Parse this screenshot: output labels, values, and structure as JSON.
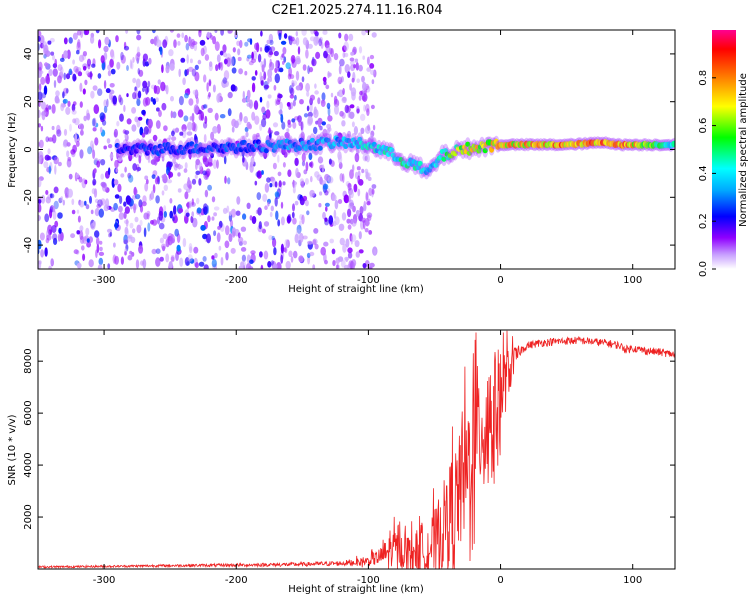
{
  "title": "C2E1.2025.274.11.16.R04",
  "chart_data": [
    {
      "type": "heatmap",
      "xlabel": "Height of straight line (km)",
      "ylabel": "Frequency (Hz)",
      "xlim": [
        -350,
        132
      ],
      "ylim": [
        -50,
        50
      ],
      "xticks": [
        -300,
        -200,
        -100,
        0,
        100
      ],
      "yticks": [
        -40,
        -20,
        0,
        20,
        40
      ],
      "colorbar": {
        "label": "Normalized spectral amplitude",
        "range": [
          0,
          1
        ],
        "ticks": [
          "0.0",
          "0.2",
          "0.4",
          "0.6",
          "0.8"
        ],
        "colormap": [
          "#ffffff",
          "#9f00ff",
          "#0000ff",
          "#00ffff",
          "#00ff00",
          "#ffff00",
          "#ff7f00",
          "#ff0000",
          "#ff0080"
        ]
      },
      "ridge": {
        "x": [
          -280,
          -200,
          -150,
          -120,
          -100,
          -90,
          -75,
          -60,
          -55,
          -45,
          -30,
          -15,
          -5,
          0,
          50,
          80,
          90,
          100,
          132
        ],
        "y": [
          0,
          1,
          2,
          3,
          2,
          0,
          -4,
          -8,
          -10,
          -3,
          0,
          1,
          2,
          2,
          2,
          3,
          2,
          2,
          2
        ],
        "amplitude": [
          0.25,
          0.3,
          0.35,
          0.4,
          0.45,
          0.45,
          0.5,
          0.45,
          0.4,
          0.5,
          0.7,
          0.75,
          0.8,
          0.8,
          0.85,
          0.9,
          0.85,
          0.8,
          0.45
        ]
      },
      "noise_region_x": [
        -350,
        -110
      ]
    },
    {
      "type": "line",
      "xlabel": "Height of straight line (km)",
      "ylabel": "SNR (10 * v/v)",
      "xlim": [
        -350,
        132
      ],
      "ylim": [
        0,
        9200
      ],
      "xticks": [
        -300,
        -200,
        -100,
        0,
        100
      ],
      "yticks": [
        2000,
        4000,
        6000,
        8000
      ],
      "color": "#ee2222",
      "series": [
        {
          "name": "SNR",
          "x": [
            -350,
            -300,
            -250,
            -200,
            -150,
            -120,
            -100,
            -90,
            -80,
            -70,
            -60,
            -50,
            -45,
            -40,
            -35,
            -30,
            -25,
            -20,
            -15,
            -10,
            -5,
            0,
            5,
            10,
            15,
            20,
            25,
            30,
            40,
            50,
            60,
            70,
            80,
            90,
            95,
            100,
            110,
            120,
            132
          ],
          "y": [
            80,
            100,
            130,
            150,
            180,
            220,
            300,
            500,
            800,
            700,
            700,
            1000,
            1500,
            2000,
            2500,
            3000,
            4000,
            5000,
            5500,
            5800,
            6200,
            6800,
            7400,
            8000,
            8400,
            8600,
            8650,
            8700,
            8750,
            8780,
            8800,
            8750,
            8700,
            8600,
            8450,
            8500,
            8400,
            8350,
            8250
          ],
          "spread": [
            40,
            40,
            50,
            60,
            80,
            100,
            200,
            400,
            800,
            700,
            1000,
            1400,
            1800,
            2000,
            2400,
            2600,
            2800,
            3000,
            2800,
            2600,
            2400,
            2000,
            1200,
            600,
            200,
            150,
            150,
            150,
            150,
            150,
            150,
            150,
            150,
            150,
            150,
            150,
            150,
            150,
            150
          ]
        }
      ]
    }
  ]
}
